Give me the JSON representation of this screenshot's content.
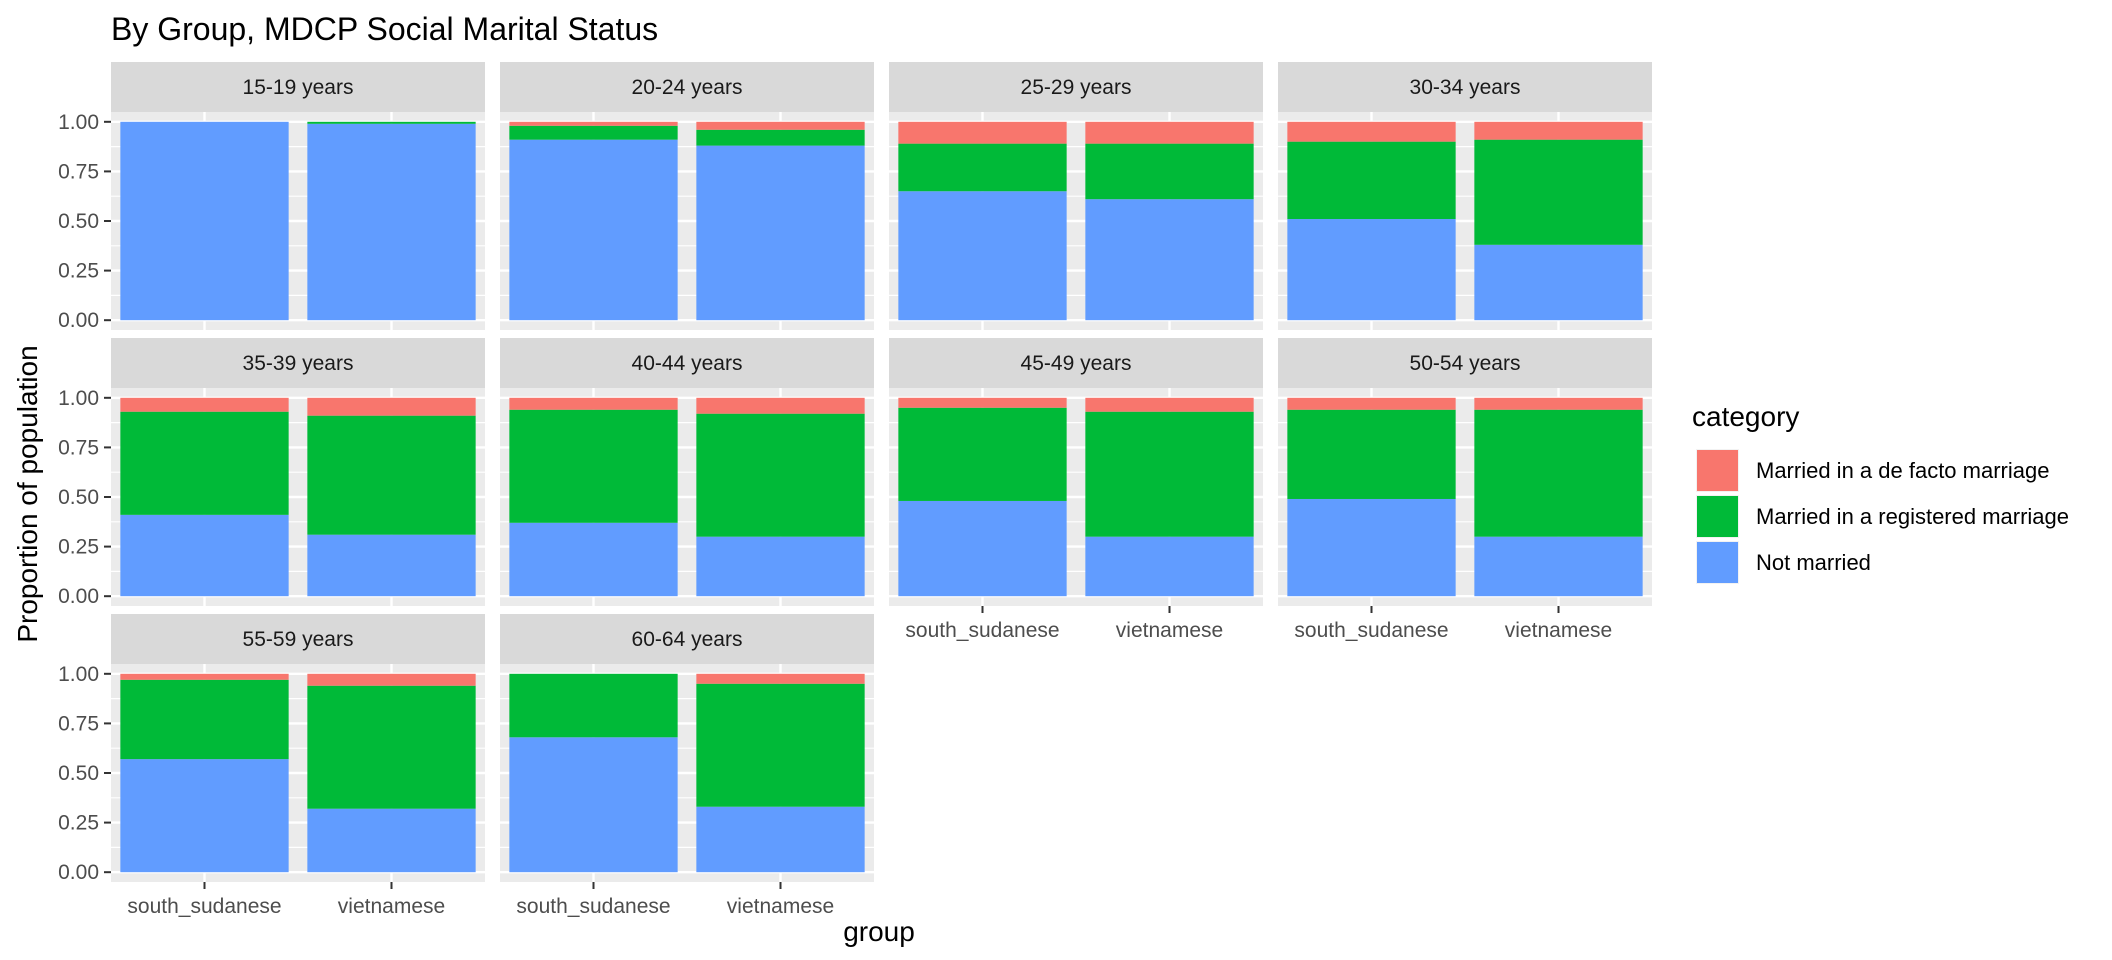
{
  "chart_data": {
    "type": "bar",
    "stacked": true,
    "position": "fill",
    "title": "By Group,  MDCP Social Marital Status",
    "xlabel": "group",
    "ylabel": "Proportion of population",
    "ylim": [
      0,
      1
    ],
    "yticks": [
      "0.00",
      "0.25",
      "0.50",
      "0.75",
      "1.00"
    ],
    "categories": [
      "south_sudanese",
      "vietnamese"
    ],
    "legend": {
      "title": "category",
      "position": "right",
      "entries": [
        {
          "name": "Married in a de facto marriage",
          "color": "#F8766D"
        },
        {
          "name": "Married in a registered marriage",
          "color": "#00BA38"
        },
        {
          "name": "Not married",
          "color": "#619CFF"
        }
      ]
    },
    "panel_background": "#EBEBEB",
    "strip_background": "#D9D9D9",
    "grid": true,
    "facet_columns": 4,
    "facets": [
      {
        "label": "15-19 years",
        "series": [
          {
            "name": "Not married",
            "values": [
              1.0,
              0.99
            ]
          },
          {
            "name": "Married in a registered marriage",
            "values": [
              0.0,
              0.01
            ]
          },
          {
            "name": "Married in a de facto marriage",
            "values": [
              0.0,
              0.0
            ]
          }
        ]
      },
      {
        "label": "20-24 years",
        "series": [
          {
            "name": "Not married",
            "values": [
              0.91,
              0.88
            ]
          },
          {
            "name": "Married in a registered marriage",
            "values": [
              0.07,
              0.08
            ]
          },
          {
            "name": "Married in a de facto marriage",
            "values": [
              0.02,
              0.04
            ]
          }
        ]
      },
      {
        "label": "25-29 years",
        "series": [
          {
            "name": "Not married",
            "values": [
              0.65,
              0.61
            ]
          },
          {
            "name": "Married in a registered marriage",
            "values": [
              0.24,
              0.28
            ]
          },
          {
            "name": "Married in a de facto marriage",
            "values": [
              0.11,
              0.11
            ]
          }
        ]
      },
      {
        "label": "30-34 years",
        "series": [
          {
            "name": "Not married",
            "values": [
              0.51,
              0.38
            ]
          },
          {
            "name": "Married in a registered marriage",
            "values": [
              0.39,
              0.53
            ]
          },
          {
            "name": "Married in a de facto marriage",
            "values": [
              0.1,
              0.09
            ]
          }
        ]
      },
      {
        "label": "35-39 years",
        "series": [
          {
            "name": "Not married",
            "values": [
              0.41,
              0.31
            ]
          },
          {
            "name": "Married in a registered marriage",
            "values": [
              0.52,
              0.6
            ]
          },
          {
            "name": "Married in a de facto marriage",
            "values": [
              0.07,
              0.09
            ]
          }
        ]
      },
      {
        "label": "40-44 years",
        "series": [
          {
            "name": "Not married",
            "values": [
              0.37,
              0.3
            ]
          },
          {
            "name": "Married in a registered marriage",
            "values": [
              0.57,
              0.62
            ]
          },
          {
            "name": "Married in a de facto marriage",
            "values": [
              0.06,
              0.08
            ]
          }
        ]
      },
      {
        "label": "45-49 years",
        "series": [
          {
            "name": "Not married",
            "values": [
              0.48,
              0.3
            ]
          },
          {
            "name": "Married in a registered marriage",
            "values": [
              0.47,
              0.63
            ]
          },
          {
            "name": "Married in a de facto marriage",
            "values": [
              0.05,
              0.07
            ]
          }
        ]
      },
      {
        "label": "50-54 years",
        "series": [
          {
            "name": "Not married",
            "values": [
              0.49,
              0.3
            ]
          },
          {
            "name": "Married in a registered marriage",
            "values": [
              0.45,
              0.64
            ]
          },
          {
            "name": "Married in a de facto marriage",
            "values": [
              0.06,
              0.06
            ]
          }
        ]
      },
      {
        "label": "55-59 years",
        "series": [
          {
            "name": "Not married",
            "values": [
              0.57,
              0.32
            ]
          },
          {
            "name": "Married in a registered marriage",
            "values": [
              0.4,
              0.62
            ]
          },
          {
            "name": "Married in a de facto marriage",
            "values": [
              0.03,
              0.06
            ]
          }
        ]
      },
      {
        "label": "60-64 years",
        "series": [
          {
            "name": "Not married",
            "values": [
              0.68,
              0.33
            ]
          },
          {
            "name": "Married in a registered marriage",
            "values": [
              0.32,
              0.62
            ]
          },
          {
            "name": "Married in a de facto marriage",
            "values": [
              0.0,
              0.05
            ]
          }
        ]
      }
    ]
  }
}
